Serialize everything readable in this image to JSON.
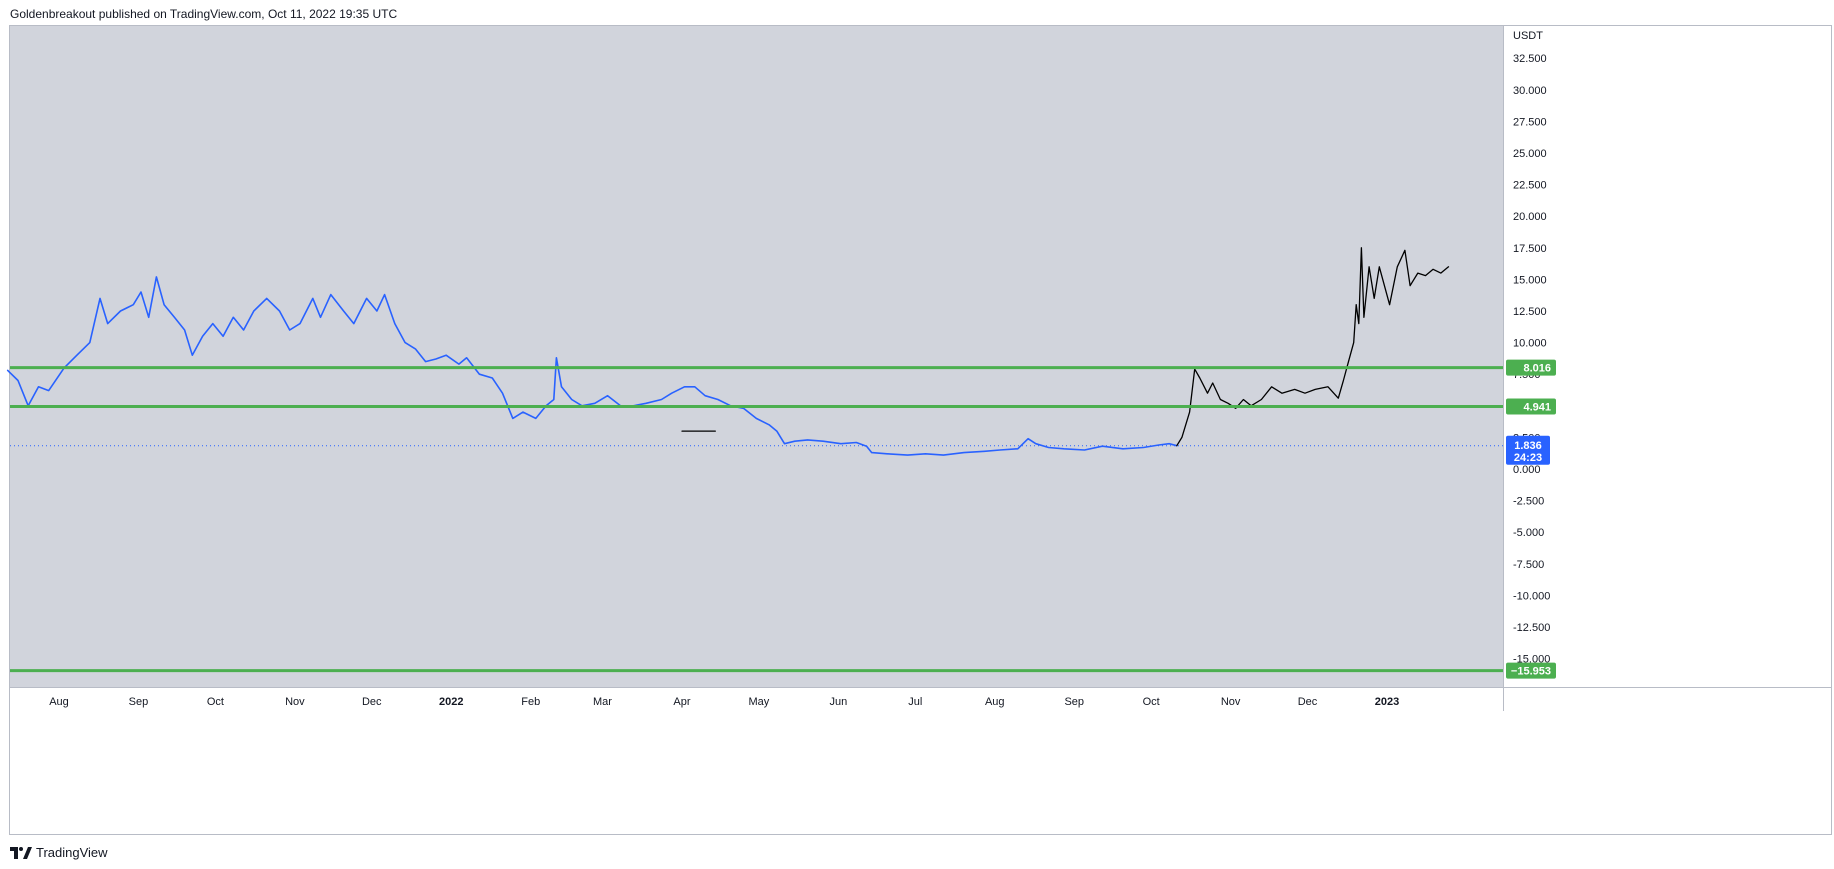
{
  "header": {
    "attribution": "Goldenbreakout published on TradingView.com, Oct 11, 2022 19:35 UTC"
  },
  "footer": {
    "brand": "TradingView",
    "logo_icon": "tradingview-logo-icon"
  },
  "colors": {
    "plot_background": "#d1d4dc",
    "price_line": "#2962ff",
    "projection_line": "#000000",
    "level_line": "#4caf50",
    "current_price_tag": "#2962ff"
  },
  "chart_data": {
    "type": "line",
    "currency_label": "USDT",
    "ylim": [
      -17.5,
      35
    ],
    "grid": false,
    "y_ticks": [
      "32.500",
      "30.000",
      "27.500",
      "25.000",
      "22.500",
      "20.000",
      "17.500",
      "15.000",
      "12.500",
      "10.000",
      "7.500",
      "5.000",
      "2.500",
      "0.000",
      "-2.500",
      "-5.000",
      "-7.500",
      "-10.000",
      "-12.500",
      "-15.000"
    ],
    "x_ticks": [
      {
        "label": "Aug",
        "date": "2021-08-01"
      },
      {
        "label": "Sep",
        "date": "2021-09-01"
      },
      {
        "label": "Oct",
        "date": "2021-10-01"
      },
      {
        "label": "Nov",
        "date": "2021-11-01"
      },
      {
        "label": "Dec",
        "date": "2021-12-01"
      },
      {
        "label": "2022",
        "date": "2022-01-01",
        "bold": true
      },
      {
        "label": "Feb",
        "date": "2022-02-01"
      },
      {
        "label": "Mar",
        "date": "2022-03-01"
      },
      {
        "label": "Apr",
        "date": "2022-04-01"
      },
      {
        "label": "May",
        "date": "2022-05-01"
      },
      {
        "label": "Jun",
        "date": "2022-06-01"
      },
      {
        "label": "Jul",
        "date": "2022-07-01"
      },
      {
        "label": "Aug",
        "date": "2022-08-01"
      },
      {
        "label": "Sep",
        "date": "2022-09-01"
      },
      {
        "label": "Oct",
        "date": "2022-10-01"
      },
      {
        "label": "Nov",
        "date": "2022-11-01"
      },
      {
        "label": "Dec",
        "date": "2022-12-01"
      },
      {
        "label": "2023",
        "date": "2023-01-01",
        "bold": true
      }
    ],
    "levels": [
      {
        "value": 8.016,
        "label": "8.016"
      },
      {
        "value": 4.941,
        "label": "4.941"
      },
      {
        "value": -15.953,
        "label": "−15.953"
      }
    ],
    "current_price": {
      "value": 1.836,
      "label": "1.836",
      "countdown": "24:23"
    },
    "series": [
      {
        "style": "price",
        "points": [
          [
            "2021-07-12",
            7.8
          ],
          [
            "2021-07-16",
            7.0
          ],
          [
            "2021-07-20",
            5.0
          ],
          [
            "2021-07-24",
            6.5
          ],
          [
            "2021-07-28",
            6.2
          ],
          [
            "2021-08-03",
            8.0
          ],
          [
            "2021-08-08",
            9.0
          ],
          [
            "2021-08-13",
            10.0
          ],
          [
            "2021-08-17",
            13.5
          ],
          [
            "2021-08-20",
            11.5
          ],
          [
            "2021-08-25",
            12.5
          ],
          [
            "2021-08-30",
            13.0
          ],
          [
            "2021-09-02",
            14.0
          ],
          [
            "2021-09-05",
            12.0
          ],
          [
            "2021-09-08",
            15.2
          ],
          [
            "2021-09-11",
            13.0
          ],
          [
            "2021-09-15",
            12.0
          ],
          [
            "2021-09-19",
            11.0
          ],
          [
            "2021-09-22",
            9.0
          ],
          [
            "2021-09-26",
            10.5
          ],
          [
            "2021-09-30",
            11.5
          ],
          [
            "2021-10-04",
            10.5
          ],
          [
            "2021-10-08",
            12.0
          ],
          [
            "2021-10-12",
            11.0
          ],
          [
            "2021-10-16",
            12.5
          ],
          [
            "2021-10-21",
            13.5
          ],
          [
            "2021-10-26",
            12.5
          ],
          [
            "2021-10-30",
            11.0
          ],
          [
            "2021-11-03",
            11.5
          ],
          [
            "2021-11-08",
            13.5
          ],
          [
            "2021-11-11",
            12.0
          ],
          [
            "2021-11-15",
            13.8
          ],
          [
            "2021-11-20",
            12.5
          ],
          [
            "2021-11-24",
            11.5
          ],
          [
            "2021-11-29",
            13.5
          ],
          [
            "2021-12-03",
            12.5
          ],
          [
            "2021-12-06",
            13.8
          ],
          [
            "2021-12-10",
            11.5
          ],
          [
            "2021-12-14",
            10.0
          ],
          [
            "2021-12-18",
            9.5
          ],
          [
            "2021-12-22",
            8.5
          ],
          [
            "2021-12-26",
            8.7
          ],
          [
            "2021-12-30",
            9.0
          ],
          [
            "2022-01-04",
            8.3
          ],
          [
            "2022-01-07",
            8.8
          ],
          [
            "2022-01-12",
            7.5
          ],
          [
            "2022-01-17",
            7.2
          ],
          [
            "2022-01-21",
            6.0
          ],
          [
            "2022-01-25",
            4.0
          ],
          [
            "2022-01-29",
            4.5
          ],
          [
            "2022-02-03",
            4.0
          ],
          [
            "2022-02-07",
            5.0
          ],
          [
            "2022-02-10",
            5.5
          ],
          [
            "2022-02-11",
            8.8
          ],
          [
            "2022-02-13",
            6.5
          ],
          [
            "2022-02-17",
            5.5
          ],
          [
            "2022-02-21",
            5.0
          ],
          [
            "2022-02-26",
            5.2
          ],
          [
            "2022-03-03",
            5.8
          ],
          [
            "2022-03-08",
            5.0
          ],
          [
            "2022-03-13",
            5.0
          ],
          [
            "2022-03-18",
            5.2
          ],
          [
            "2022-03-24",
            5.5
          ],
          [
            "2022-03-28",
            6.0
          ],
          [
            "2022-04-02",
            6.5
          ],
          [
            "2022-04-06",
            6.5
          ],
          [
            "2022-04-10",
            5.8
          ],
          [
            "2022-04-15",
            5.5
          ],
          [
            "2022-04-20",
            5.0
          ],
          [
            "2022-04-25",
            4.8
          ],
          [
            "2022-04-30",
            4.0
          ],
          [
            "2022-05-05",
            3.5
          ],
          [
            "2022-05-08",
            3.0
          ],
          [
            "2022-05-11",
            2.0
          ],
          [
            "2022-05-15",
            2.2
          ],
          [
            "2022-05-20",
            2.3
          ],
          [
            "2022-05-26",
            2.2
          ],
          [
            "2022-06-02",
            2.0
          ],
          [
            "2022-06-08",
            2.1
          ],
          [
            "2022-06-12",
            1.8
          ],
          [
            "2022-06-14",
            1.3
          ],
          [
            "2022-06-20",
            1.2
          ],
          [
            "2022-06-28",
            1.1
          ],
          [
            "2022-07-05",
            1.2
          ],
          [
            "2022-07-12",
            1.1
          ],
          [
            "2022-07-20",
            1.3
          ],
          [
            "2022-07-28",
            1.4
          ],
          [
            "2022-08-03",
            1.5
          ],
          [
            "2022-08-10",
            1.6
          ],
          [
            "2022-08-14",
            2.4
          ],
          [
            "2022-08-17",
            2.0
          ],
          [
            "2022-08-22",
            1.7
          ],
          [
            "2022-08-28",
            1.6
          ],
          [
            "2022-09-05",
            1.5
          ],
          [
            "2022-09-12",
            1.8
          ],
          [
            "2022-09-20",
            1.6
          ],
          [
            "2022-09-28",
            1.7
          ],
          [
            "2022-10-04",
            1.9
          ],
          [
            "2022-10-08",
            2.0
          ],
          [
            "2022-10-11",
            1.84
          ]
        ]
      },
      {
        "style": "projection",
        "points": [
          [
            "2022-10-11",
            1.84
          ],
          [
            "2022-10-13",
            2.5
          ],
          [
            "2022-10-16",
            4.5
          ],
          [
            "2022-10-18",
            7.9
          ],
          [
            "2022-10-20",
            7.2
          ],
          [
            "2022-10-23",
            6.0
          ],
          [
            "2022-10-25",
            6.8
          ],
          [
            "2022-10-28",
            5.5
          ],
          [
            "2022-10-31",
            5.2
          ],
          [
            "2022-11-03",
            4.8
          ],
          [
            "2022-11-06",
            5.5
          ],
          [
            "2022-11-09",
            5.0
          ],
          [
            "2022-11-13",
            5.5
          ],
          [
            "2022-11-17",
            6.5
          ],
          [
            "2022-11-21",
            6.0
          ],
          [
            "2022-11-26",
            6.3
          ],
          [
            "2022-11-30",
            6.0
          ],
          [
            "2022-12-04",
            6.3
          ],
          [
            "2022-12-09",
            6.5
          ],
          [
            "2022-12-13",
            5.6
          ],
          [
            "2022-12-15",
            7.0
          ],
          [
            "2022-12-17",
            8.5
          ],
          [
            "2022-12-19",
            10.0
          ],
          [
            "2022-12-20",
            13.0
          ],
          [
            "2022-12-21",
            11.5
          ],
          [
            "2022-12-22",
            17.5
          ],
          [
            "2022-12-23",
            12.0
          ],
          [
            "2022-12-25",
            16.0
          ],
          [
            "2022-12-27",
            13.5
          ],
          [
            "2022-12-29",
            16.0
          ],
          [
            "2023-01-02",
            13.0
          ],
          [
            "2023-01-05",
            16.0
          ],
          [
            "2023-01-08",
            17.3
          ],
          [
            "2023-01-10",
            14.5
          ],
          [
            "2023-01-13",
            15.5
          ],
          [
            "2023-01-16",
            15.3
          ],
          [
            "2023-01-19",
            15.8
          ],
          [
            "2023-01-22",
            15.5
          ],
          [
            "2023-01-25",
            16.0
          ]
        ]
      },
      {
        "style": "drawing",
        "points": [
          [
            "2022-04-01",
            3.0
          ],
          [
            "2022-04-14",
            3.0
          ]
        ]
      }
    ]
  }
}
